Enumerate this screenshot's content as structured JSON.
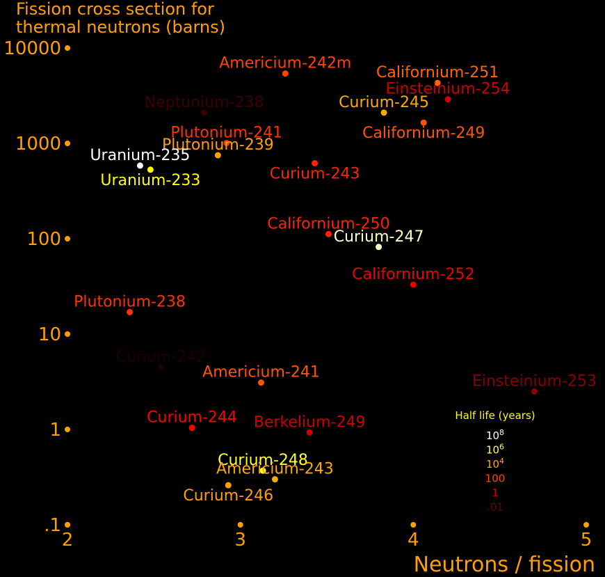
{
  "chart_data": {
    "type": "scatter",
    "title": "Fission cross section for\nthermal neutrons (barns)",
    "xlabel": "Neutrons / fission",
    "x_scale": "linear",
    "y_scale": "log",
    "xlim": [
      2,
      5
    ],
    "ylim": [
      0.1,
      10000
    ],
    "x_ticks": [
      {
        "value": 2,
        "label": "2"
      },
      {
        "value": 3,
        "label": "3"
      },
      {
        "value": 4,
        "label": "4"
      },
      {
        "value": 5,
        "label": "5"
      }
    ],
    "y_ticks": [
      {
        "value": 10000,
        "label": "10000"
      },
      {
        "value": 1000,
        "label": "1000"
      },
      {
        "value": 100,
        "label": "100"
      },
      {
        "value": 10,
        "label": "10"
      },
      {
        "value": 1,
        "label": "1"
      },
      {
        "value": 0.1,
        "label": ".1"
      }
    ],
    "axis_color": "#ffa000",
    "grid": false,
    "points": [
      {
        "name": "Americium-242m",
        "x": 3.26,
        "y": 5400,
        "color": "#ff4400",
        "label_pos": "above"
      },
      {
        "name": "Californium-251",
        "x": 4.14,
        "y": 4300,
        "color": "#ff6600",
        "label_pos": "above"
      },
      {
        "name": "Einsteinium-254",
        "x": 4.2,
        "y": 2900,
        "color": "#cc0000",
        "label_pos": "above"
      },
      {
        "name": "Neptunium-238",
        "x": 2.79,
        "y": 2100,
        "color": "#3c0000",
        "label_pos": "above"
      },
      {
        "name": "Curium-245",
        "x": 3.83,
        "y": 2100,
        "color": "#ffaa00",
        "label_pos": "above"
      },
      {
        "name": "Californium-249",
        "x": 4.06,
        "y": 1650,
        "color": "#ff5500",
        "label_pos": "below"
      },
      {
        "name": "Plutonium-241",
        "x": 2.92,
        "y": 1010,
        "color": "#ff3300",
        "label_pos": "above"
      },
      {
        "name": "Plutonium-239",
        "x": 2.87,
        "y": 750,
        "color": "#ffa000",
        "label_pos": "above"
      },
      {
        "name": "Curium-243",
        "x": 3.43,
        "y": 620,
        "color": "#ff2200",
        "label_pos": "below"
      },
      {
        "name": "Uranium-235",
        "x": 2.42,
        "y": 585,
        "color": "#ffffff",
        "label_pos": "above"
      },
      {
        "name": "Uranium-233",
        "x": 2.48,
        "y": 530,
        "color": "#ffff00",
        "label_pos": "below"
      },
      {
        "name": "Californium-250",
        "x": 3.51,
        "y": 112,
        "color": "#ff2200",
        "label_pos": "above"
      },
      {
        "name": "Curium-247",
        "x": 3.8,
        "y": 82,
        "color": "#ffffcc",
        "label_pos": "above"
      },
      {
        "name": "Californium-252",
        "x": 4.0,
        "y": 33,
        "color": "#ee0000",
        "label_pos": "above"
      },
      {
        "name": "Plutonium-238",
        "x": 2.36,
        "y": 17,
        "color": "#ff3300",
        "label_pos": "above"
      },
      {
        "name": "Curium-242",
        "x": 2.54,
        "y": 4.5,
        "color": "#1e0000",
        "label_pos": "above"
      },
      {
        "name": "Americium-241",
        "x": 3.12,
        "y": 3.1,
        "color": "#ff5500",
        "label_pos": "above"
      },
      {
        "name": "Einsteinium-253",
        "x": 4.7,
        "y": 2.5,
        "color": "#880000",
        "label_pos": "above"
      },
      {
        "name": "Curium-244",
        "x": 2.72,
        "y": 1.04,
        "color": "#ff0000",
        "label_pos": "above"
      },
      {
        "name": "Berkelium-249",
        "x": 3.4,
        "y": 0.93,
        "color": "#cc0000",
        "label_pos": "above"
      },
      {
        "name": "Curium-248",
        "x": 3.13,
        "y": 0.37,
        "color": "#ffff33",
        "label_pos": "above"
      },
      {
        "name": "Americium-243",
        "x": 3.2,
        "y": 0.3,
        "color": "#ffaa00",
        "label_pos": "above"
      },
      {
        "name": "Curium-246",
        "x": 2.93,
        "y": 0.26,
        "color": "#ffa000",
        "label_pos": "below"
      }
    ],
    "legend": {
      "title": "Half life (years)",
      "placement": "bottom-right",
      "title_color": "#ffff00",
      "entries": [
        {
          "base": "10",
          "exp": "8",
          "color": "#ffffff"
        },
        {
          "base": "10",
          "exp": "6",
          "color": "#ffff66"
        },
        {
          "base": "10",
          "exp": "4",
          "color": "#ffaa00"
        },
        {
          "base": "100",
          "exp": "",
          "color": "#ff4400"
        },
        {
          "base": "1",
          "exp": "",
          "color": "#cc0000"
        },
        {
          "base": ".01",
          "exp": "",
          "color": "#660000"
        }
      ]
    }
  }
}
